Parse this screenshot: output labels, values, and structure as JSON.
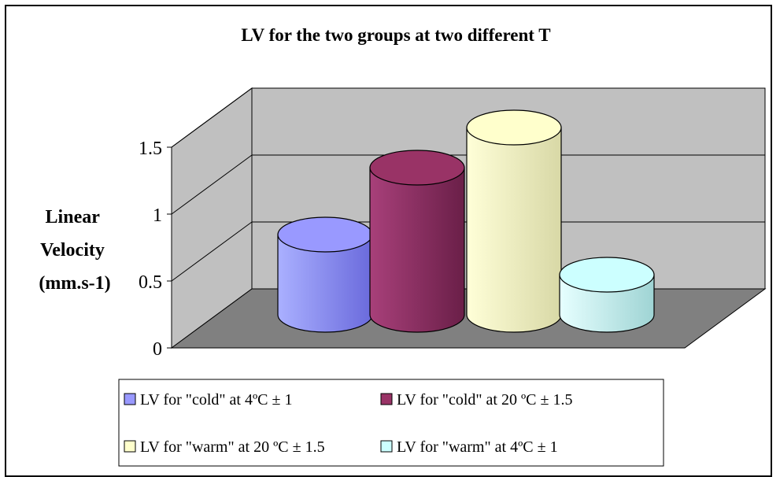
{
  "chart_data": {
    "type": "bar",
    "title": "LV for the two groups at two different T",
    "ylabel_lines": [
      "Linear",
      "Velocity",
      "(mm.s-1)"
    ],
    "xlabel": "",
    "ylim": [
      0,
      1.5
    ],
    "yticks": [
      "0",
      "0.5",
      "1",
      "1.5"
    ],
    "grid": true,
    "legend_position": "bottom",
    "series": [
      {
        "name": "LV for \"cold\" at 4ºC ± 1",
        "value": 0.6,
        "color": "#9999ff"
      },
      {
        "name": "LV for \"cold\" at 20 ºC ± 1.5",
        "value": 1.1,
        "color": "#993366"
      },
      {
        "name": "LV for \"warm\" at 20 ºC ± 1.5",
        "value": 1.4,
        "color": "#ffffcc"
      },
      {
        "name": "LV for \"warm\" at 4ºC ± 1",
        "value": 0.3,
        "color": "#ccffff"
      }
    ]
  }
}
